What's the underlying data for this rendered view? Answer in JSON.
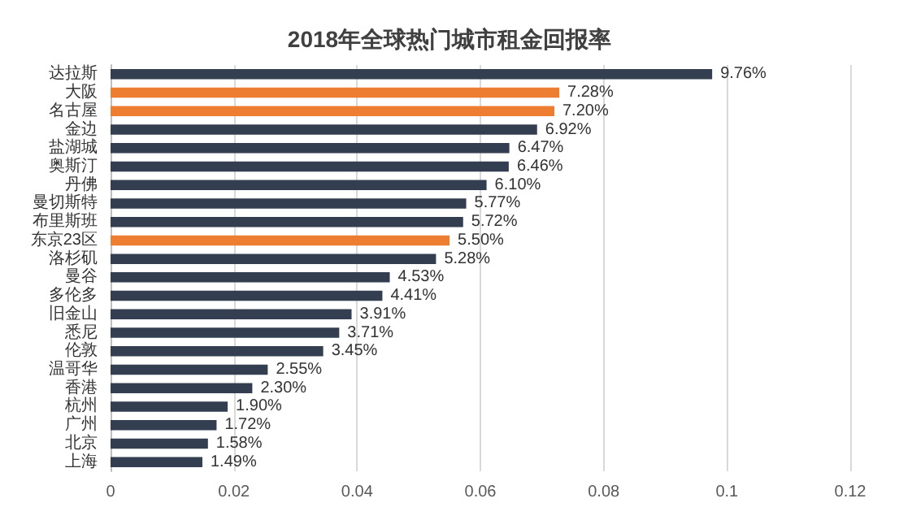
{
  "chart_data": {
    "type": "bar",
    "orientation": "horizontal",
    "title": "2018年全球热门城市租金回报率",
    "categories": [
      "达拉斯",
      "大阪",
      "名古屋",
      "金边",
      "盐湖城",
      "奥斯汀",
      "丹佛",
      "曼切斯特",
      "布里斯班",
      "东京23区",
      "洛杉矶",
      "曼谷",
      "多伦多",
      "旧金山",
      "悉尼",
      "伦敦",
      "温哥华",
      "香港",
      "杭州",
      "广州",
      "北京",
      "上海"
    ],
    "values": [
      0.0976,
      0.0728,
      0.072,
      0.0692,
      0.0647,
      0.0646,
      0.061,
      0.0577,
      0.0572,
      0.055,
      0.0528,
      0.0453,
      0.0441,
      0.0391,
      0.0371,
      0.0345,
      0.0255,
      0.023,
      0.019,
      0.0172,
      0.0158,
      0.0149
    ],
    "value_labels": [
      "9.76%",
      "7.28%",
      "7.20%",
      "6.92%",
      "6.47%",
      "6.46%",
      "6.10%",
      "5.77%",
      "5.72%",
      "5.50%",
      "5.28%",
      "4.53%",
      "4.41%",
      "3.91%",
      "3.71%",
      "3.45%",
      "2.55%",
      "2.30%",
      "1.90%",
      "1.72%",
      "1.58%",
      "1.49%"
    ],
    "colors": [
      "#333f50",
      "#ed7d31",
      "#ed7d31",
      "#333f50",
      "#333f50",
      "#333f50",
      "#333f50",
      "#333f50",
      "#333f50",
      "#ed7d31",
      "#333f50",
      "#333f50",
      "#333f50",
      "#333f50",
      "#333f50",
      "#333f50",
      "#333f50",
      "#333f50",
      "#333f50",
      "#333f50",
      "#333f50",
      "#333f50"
    ],
    "xlim": [
      0,
      0.12
    ],
    "xticks": [
      0,
      0.02,
      0.04,
      0.06,
      0.08,
      0.1,
      0.12
    ],
    "grid": "x"
  }
}
